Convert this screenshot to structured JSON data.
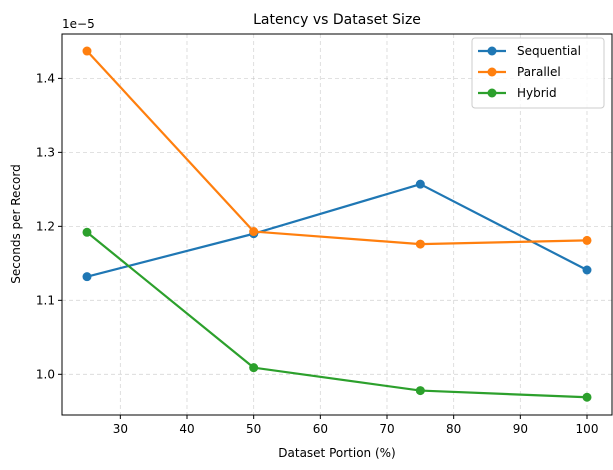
{
  "chart_data": {
    "type": "line",
    "title": "Latency vs Dataset Size",
    "xlabel": "Dataset Portion (%)",
    "ylabel": "Seconds per Record",
    "offset_text": "1e−5",
    "x": [
      25,
      50,
      75,
      100
    ],
    "xlim": [
      21.25,
      103.75
    ],
    "ylim": [
      0.945,
      1.46
    ],
    "xticks": [
      30,
      40,
      50,
      60,
      70,
      80,
      90,
      100
    ],
    "yticks": [
      1.0,
      1.1,
      1.2,
      1.3,
      1.4
    ],
    "ytick_labels": [
      "1.0",
      "1.1",
      "1.2",
      "1.3",
      "1.4"
    ],
    "grid": true,
    "legend_position": "top-right",
    "series": [
      {
        "name": "Sequential",
        "color": "#1f77b4",
        "values": [
          1.132,
          1.19,
          1.257,
          1.141
        ]
      },
      {
        "name": "Parallel",
        "color": "#ff7f0e",
        "values": [
          1.437,
          1.193,
          1.176,
          1.181
        ]
      },
      {
        "name": "Hybrid",
        "color": "#2ca02c",
        "values": [
          1.192,
          1.009,
          0.978,
          0.969
        ]
      }
    ]
  }
}
